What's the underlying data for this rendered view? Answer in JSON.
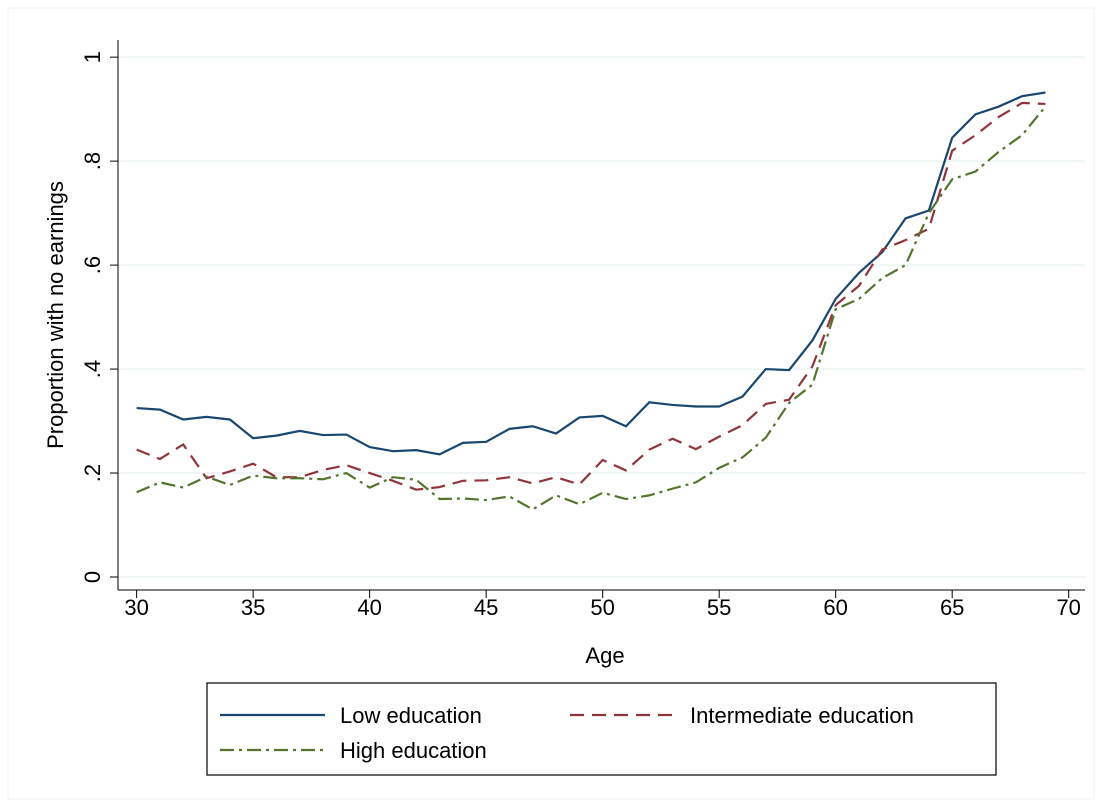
{
  "chart_data": {
    "type": "line",
    "x": [
      30,
      31,
      32,
      33,
      34,
      35,
      36,
      37,
      38,
      39,
      40,
      41,
      42,
      43,
      44,
      45,
      46,
      47,
      48,
      49,
      50,
      51,
      52,
      53,
      54,
      55,
      56,
      57,
      58,
      59,
      60,
      61,
      62,
      63,
      64,
      65,
      66,
      67,
      68,
      69
    ],
    "x_label": "Age",
    "y_label": "Proportion with no earnings",
    "xlim": [
      29.2,
      70.7
    ],
    "xticks": [
      30,
      35,
      40,
      45,
      50,
      55,
      60,
      65,
      70
    ],
    "ylim": [
      -0.025,
      1.033
    ],
    "yticks": [
      0,
      {
        "value": 0.2,
        "label": ".2"
      },
      {
        "value": 0.4,
        "label": ".4"
      },
      {
        "value": 0.6,
        "label": ".6"
      },
      {
        "value": 0.8,
        "label": ".8"
      },
      1
    ],
    "grid": true,
    "legend": "bottom",
    "series": [
      {
        "name": "Low education",
        "color": "#1a476f",
        "dash": "solid",
        "values": [
          0.325,
          0.322,
          0.303,
          0.308,
          0.303,
          0.267,
          0.272,
          0.281,
          0.273,
          0.274,
          0.25,
          0.242,
          0.244,
          0.236,
          0.258,
          0.26,
          0.285,
          0.29,
          0.276,
          0.307,
          0.31,
          0.29,
          0.336,
          0.331,
          0.328,
          0.328,
          0.347,
          0.4,
          0.398,
          0.455,
          0.535,
          0.585,
          0.625,
          0.69,
          0.705,
          0.845,
          0.89,
          0.905,
          0.925,
          0.932
        ]
      },
      {
        "name": "Intermediate education",
        "color": "#90353b",
        "dash": "dashed",
        "values": [
          0.245,
          0.227,
          0.255,
          0.19,
          0.203,
          0.218,
          0.192,
          0.192,
          0.206,
          0.215,
          0.2,
          0.185,
          0.168,
          0.173,
          0.185,
          0.186,
          0.192,
          0.18,
          0.192,
          0.178,
          0.225,
          0.205,
          0.245,
          0.266,
          0.246,
          0.27,
          0.292,
          0.333,
          0.341,
          0.405,
          0.523,
          0.56,
          0.63,
          0.648,
          0.67,
          0.82,
          0.85,
          0.885,
          0.912,
          0.91
        ]
      },
      {
        "name": "High education",
        "color": "#55752f",
        "dash": "dashdot",
        "values": [
          0.163,
          0.182,
          0.172,
          0.193,
          0.177,
          0.195,
          0.19,
          0.19,
          0.188,
          0.2,
          0.172,
          0.192,
          0.187,
          0.15,
          0.151,
          0.148,
          0.155,
          0.13,
          0.157,
          0.14,
          0.162,
          0.15,
          0.157,
          0.17,
          0.182,
          0.21,
          0.23,
          0.268,
          0.335,
          0.37,
          0.515,
          0.535,
          0.575,
          0.6,
          0.7,
          0.765,
          0.78,
          0.818,
          0.85,
          0.905
        ]
      }
    ]
  }
}
